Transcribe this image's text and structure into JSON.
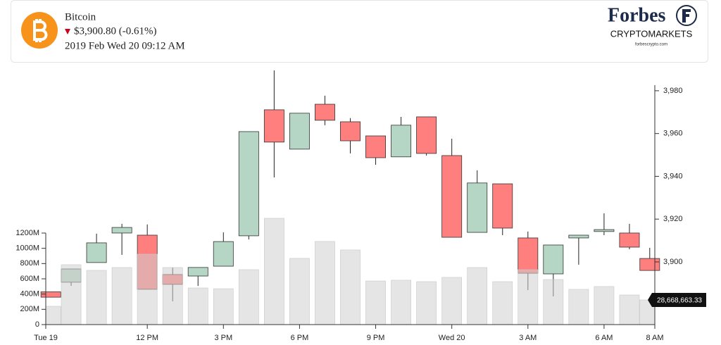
{
  "header": {
    "name": "Bitcoin",
    "price": "$3,900.80 (-0.61%)",
    "datetime": "2019 Feb Wed 20 09:12 AM",
    "brand": "Forbes",
    "brand_sub": "CRYPTOMARKETS",
    "brand_url": "forbescrypto.com"
  },
  "chart_data": {
    "type": "candlestick",
    "x": [
      0.2,
      1,
      2,
      3,
      4,
      5,
      6,
      7,
      8,
      9,
      10,
      11,
      12,
      13,
      14,
      15,
      16,
      17,
      18,
      19,
      20,
      21,
      22,
      23,
      23.8
    ],
    "open": [
      3886,
      3890.5,
      3899.7,
      3913.5,
      3912.5,
      3894.1,
      3893.4,
      3898,
      3912.2,
      3971.1,
      3952.7,
      3973.7,
      3965.5,
      3958.9,
      3949.1,
      3967.8,
      3949.7,
      3913.8,
      3936.5,
      3911.2,
      3894.4,
      3911.2,
      3914.2,
      3913.5,
      3901.6
    ],
    "high": [
      3886,
      3896.7,
      3913.2,
      3917.8,
      3917.5,
      3897.4,
      3897.4,
      3913.8,
      3960.9,
      3989.5,
      3969.5,
      3977.7,
      3967.2,
      3958.9,
      3967.8,
      3967.8,
      3957.6,
      3942.8,
      3936.5,
      3914.2,
      3907.9,
      3912.5,
      3922.7,
      3917.8,
      3906.6
    ],
    "low": [
      3883.5,
      3888.8,
      3899.7,
      3903.3,
      3887.2,
      3881.6,
      3888.8,
      3898,
      3910.5,
      3939.5,
      3952.7,
      3963.9,
      3950.7,
      3945.4,
      3949.1,
      3949.7,
      3911.5,
      3913.8,
      3912.5,
      3886.8,
      3883.9,
      3898.7,
      3912.5,
      3905.9,
      3896
    ],
    "close": [
      3883.5,
      3896.7,
      3908.9,
      3916.1,
      3887.2,
      3889.5,
      3897.4,
      3909.5,
      3960.9,
      3956,
      3969.5,
      3966.2,
      3956.6,
      3948.7,
      3963.9,
      3950.7,
      3911.5,
      3936.9,
      3915.8,
      3894.7,
      3907.9,
      3912.5,
      3915.1,
      3906.9,
      3896
    ],
    "volume": [
      240,
      785,
      711,
      748,
      923,
      748,
      480,
      470,
      720,
      1394,
      868,
      1090,
      979,
      572,
      582,
      563,
      619,
      748,
      563,
      720,
      591,
      462,
      499,
      388,
      323
    ],
    "up_color": "#b5d6c4",
    "down_color": "#ff7f7f",
    "volume_color": "#cfcfcf",
    "xlim": [
      0,
      24
    ],
    "xticks": [
      {
        "value": 0,
        "label": "Tue 19"
      },
      {
        "value": 4,
        "label": "12 PM"
      },
      {
        "value": 7,
        "label": "3 PM"
      },
      {
        "value": 10,
        "label": "6 PM"
      },
      {
        "value": 13,
        "label": "9 PM"
      },
      {
        "value": 16,
        "label": "Wed 20"
      },
      {
        "value": 19,
        "label": "3 AM"
      },
      {
        "value": 22,
        "label": "6 AM"
      },
      {
        "value": 24,
        "label": "8 AM"
      }
    ],
    "ylim": [
      3870.7,
      3992.8
    ],
    "yticks": [
      {
        "value": 3900,
        "label": "3,900"
      },
      {
        "value": 3920,
        "label": "3,920"
      },
      {
        "value": 3940,
        "label": "3,940"
      },
      {
        "value": 3960,
        "label": "3,960"
      },
      {
        "value": 3980,
        "label": "3,980"
      }
    ],
    "y2lim": [
      0,
      3425
    ],
    "y2ticks": [
      0,
      {
        "value": 200,
        "label": "200M"
      },
      {
        "value": 400,
        "label": "400M"
      },
      {
        "value": 600,
        "label": "600M"
      },
      {
        "value": 800,
        "label": "800M"
      },
      {
        "value": 1000,
        "label": "1000M"
      },
      {
        "value": 1200,
        "label": "1200M"
      }
    ],
    "annotation": "28,668,663.33"
  }
}
